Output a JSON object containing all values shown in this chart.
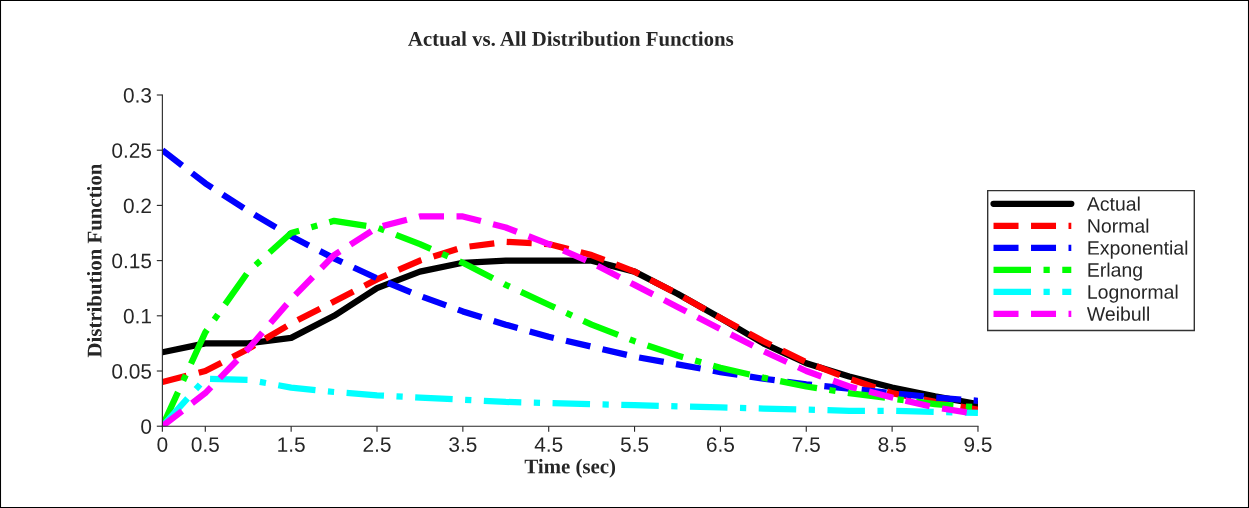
{
  "chart_data": {
    "type": "line",
    "title": "Actual vs. All Distribution Functions",
    "xlabel": "Time (sec)",
    "ylabel": "Distribution Function",
    "x": [
      0,
      0.5,
      1,
      1.5,
      2,
      2.5,
      3,
      3.5,
      4,
      4.5,
      5,
      5.5,
      6,
      6.5,
      7,
      7.5,
      8,
      8.5,
      9,
      9.5
    ],
    "xlim": [
      0,
      9.5
    ],
    "xticks": [
      0,
      0.5,
      1.5,
      2.5,
      3.5,
      4.5,
      5.5,
      6.5,
      7.5,
      8.5,
      9.5
    ],
    "ylim": [
      0,
      0.3
    ],
    "yticks": [
      0,
      0.05,
      0.1,
      0.15,
      0.2,
      0.25,
      0.3
    ],
    "grid": false,
    "legend": "right",
    "marker": "none",
    "series": [
      {
        "name": "Actual",
        "color": "#000000",
        "line_style": "solid",
        "values": [
          0.067,
          0.075,
          0.075,
          0.08,
          0.1,
          0.125,
          0.14,
          0.148,
          0.15,
          0.15,
          0.15,
          0.14,
          0.12,
          0.098,
          0.075,
          0.057,
          0.045,
          0.035,
          0.027,
          0.02
        ]
      },
      {
        "name": "Normal",
        "color": "#ff0000",
        "line_style": "dashed",
        "values": [
          0.04,
          0.05,
          0.07,
          0.093,
          0.113,
          0.133,
          0.15,
          0.162,
          0.167,
          0.165,
          0.155,
          0.14,
          0.12,
          0.098,
          0.077,
          0.058,
          0.043,
          0.03,
          0.022,
          0.015
        ]
      },
      {
        "name": "Exponential",
        "color": "#0000ff",
        "line_style": "dashed",
        "values": [
          0.25,
          0.22,
          0.195,
          0.172,
          0.152,
          0.134,
          0.118,
          0.104,
          0.092,
          0.081,
          0.072,
          0.063,
          0.056,
          0.049,
          0.043,
          0.038,
          0.034,
          0.03,
          0.026,
          0.023
        ]
      },
      {
        "name": "Erlang",
        "color": "#00ff00",
        "line_style": "dashdot",
        "values": [
          0,
          0.085,
          0.14,
          0.175,
          0.186,
          0.18,
          0.165,
          0.148,
          0.128,
          0.11,
          0.092,
          0.077,
          0.064,
          0.053,
          0.044,
          0.036,
          0.03,
          0.025,
          0.02,
          0.017
        ]
      },
      {
        "name": "Lognormal",
        "color": "#00ffff",
        "line_style": "dashdot",
        "values": [
          0,
          0.043,
          0.042,
          0.035,
          0.031,
          0.028,
          0.026,
          0.024,
          0.022,
          0.021,
          0.02,
          0.019,
          0.018,
          0.017,
          0.016,
          0.015,
          0.014,
          0.014,
          0.013,
          0.012
        ]
      },
      {
        "name": "Weibull",
        "color": "#ff00ff",
        "line_style": "dashed",
        "values": [
          0,
          0.03,
          0.07,
          0.115,
          0.155,
          0.18,
          0.19,
          0.19,
          0.18,
          0.165,
          0.148,
          0.128,
          0.108,
          0.088,
          0.068,
          0.05,
          0.036,
          0.026,
          0.017,
          0.011
        ]
      }
    ]
  }
}
